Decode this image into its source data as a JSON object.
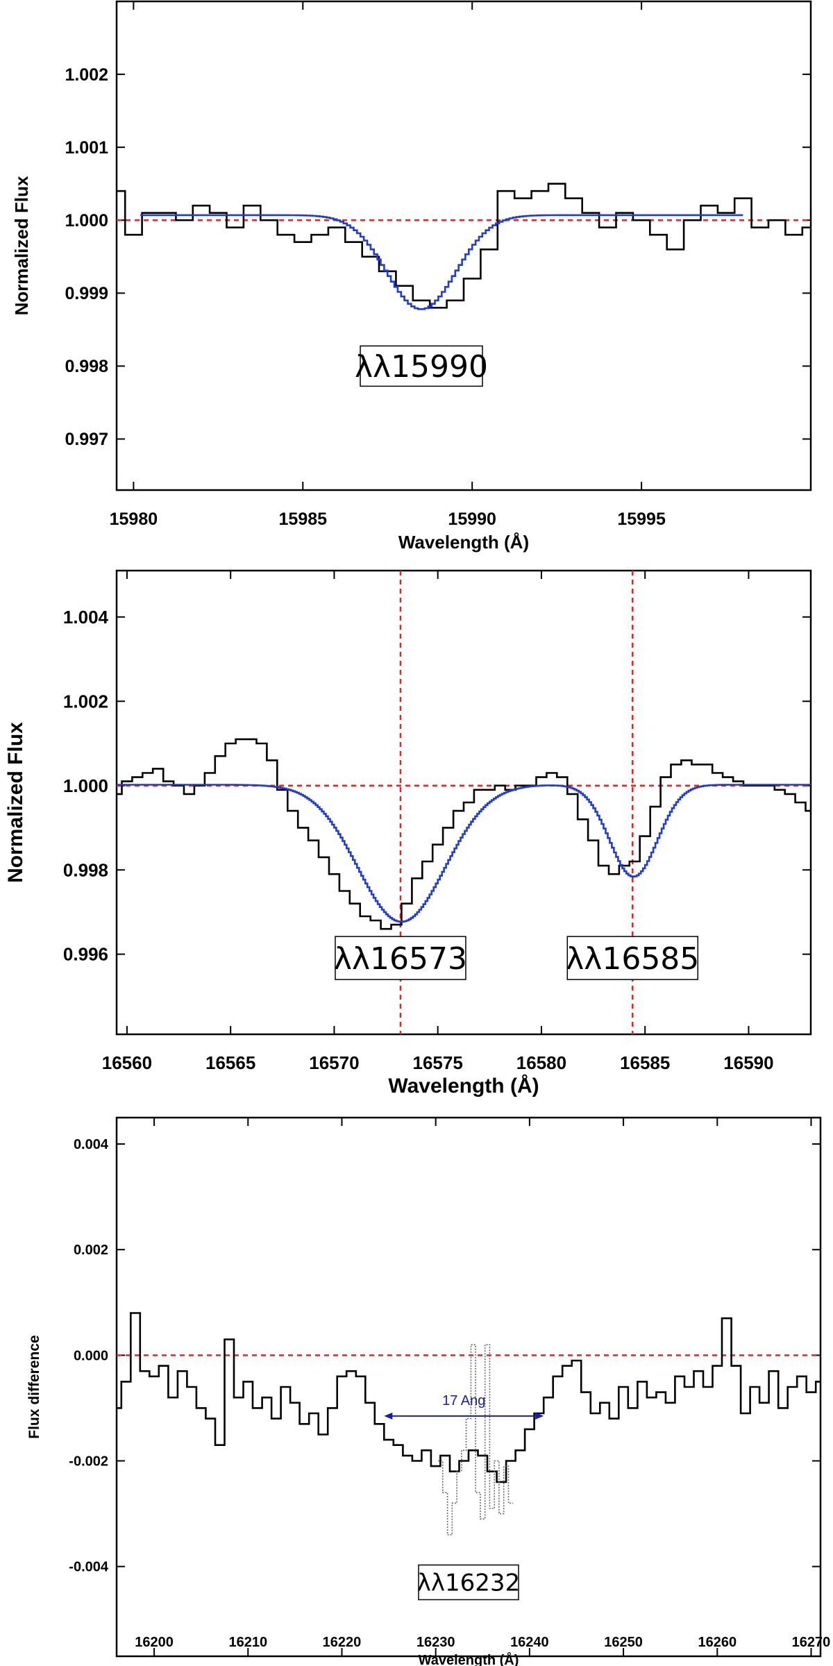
{
  "chart_data": [
    {
      "type": "line",
      "xlabel": "Wavelength (Å)",
      "ylabel": "Normalized Flux",
      "xlim": [
        15979.5,
        16000
      ],
      "ylim": [
        0.9963,
        1.003
      ],
      "xticks": [
        15980,
        15985,
        15990,
        15995
      ],
      "xtick_labels": [
        "15980",
        "15985",
        "15990",
        "15995"
      ],
      "yticks": [
        0.997,
        0.998,
        0.999,
        1.0,
        1.001,
        1.002
      ],
      "ytick_labels": [
        "0.997",
        "0.998",
        "0.999",
        "1.000",
        "1.001",
        "1.002"
      ],
      "hlines": [
        1.0
      ],
      "vlines": [],
      "labels": [
        {
          "text": "λλ15990",
          "x": 15988.5,
          "y": 0.998
        }
      ],
      "series": [
        {
          "style": "observed",
          "color": "#000000",
          "x": [
            15979.5,
            15980.0,
            15980.5,
            15981.0,
            15981.5,
            15982.0,
            15982.5,
            15983.0,
            15983.5,
            15984.0,
            15984.5,
            15985.0,
            15985.5,
            15986.0,
            15986.5,
            15987.0,
            15987.5,
            15988.0,
            15988.5,
            15989.0,
            15989.5,
            15990.0,
            15990.5,
            15991.0,
            15991.5,
            15992.0,
            15992.5,
            15993.0,
            15993.5,
            15994.0,
            15994.5,
            15995.0,
            15995.5,
            15996.0,
            15996.5,
            15997.0,
            15997.5,
            15998.0,
            15998.5,
            15999.0,
            15999.5,
            16000.0
          ],
          "y": [
            1.0004,
            0.9998,
            1.0001,
            1.0001,
            1.0,
            1.0002,
            1.0001,
            0.9999,
            1.0002,
            1.0,
            0.9998,
            0.9997,
            0.9998,
            0.9999,
            0.9997,
            0.9995,
            0.9993,
            0.9991,
            0.9989,
            0.9988,
            0.9989,
            0.9992,
            0.9996,
            1.0004,
            1.0003,
            1.0004,
            1.0005,
            1.0003,
            1.0001,
            0.9999,
            1.0001,
            1.0,
            0.9998,
            0.9996,
            1.0,
            1.0002,
            1.0001,
            1.0003,
            0.9999,
            1.0,
            0.9998,
            0.9999
          ]
        },
        {
          "style": "model",
          "color": "#1f3bd6",
          "line_center": 15988.45,
          "depth": 0.00129,
          "sigma": 1.02,
          "continuum": 1.00007,
          "x_range": [
            15980.2,
            15998.0
          ]
        }
      ]
    },
    {
      "type": "line",
      "xlabel": "Wavelength (Å)",
      "ylabel": "Normalized Flux",
      "xlim": [
        16559.5,
        16593
      ],
      "ylim": [
        0.9941,
        1.0051
      ],
      "xticks": [
        16560,
        16565,
        16570,
        16575,
        16580,
        16585,
        16590
      ],
      "xtick_labels": [
        "16560",
        "16565",
        "16570",
        "16575",
        "16580",
        "16585",
        "16590"
      ],
      "yticks": [
        0.996,
        0.998,
        1.0,
        1.002,
        1.004
      ],
      "ytick_labels": [
        "0.996",
        "0.998",
        "1.000",
        "1.002",
        "1.004"
      ],
      "hlines": [
        1.0
      ],
      "vlines": [
        16573.2,
        16584.4
      ],
      "labels": [
        {
          "text": "λλ16573",
          "x": 16573.2,
          "y": 0.99591
        },
        {
          "text": "λλ16585",
          "x": 16584.4,
          "y": 0.99591
        }
      ],
      "series": [
        {
          "style": "observed",
          "color": "#000000",
          "x": [
            16559.5,
            16560.0,
            16560.5,
            16561.0,
            16561.5,
            16562.0,
            16562.5,
            16563.0,
            16563.5,
            16564.0,
            16564.5,
            16565.0,
            16565.5,
            16566.0,
            16566.5,
            16567.0,
            16567.5,
            16568.0,
            16568.5,
            16569.0,
            16569.5,
            16570.0,
            16570.5,
            16571.0,
            16571.5,
            16572.0,
            16572.5,
            16573.0,
            16573.5,
            16574.0,
            16574.5,
            16575.0,
            16575.5,
            16576.0,
            16576.5,
            16577.0,
            16577.5,
            16578.0,
            16578.5,
            16579.0,
            16579.5,
            16580.0,
            16580.5,
            16581.0,
            16581.5,
            16582.0,
            16582.5,
            16583.0,
            16583.5,
            16584.0,
            16584.5,
            16585.0,
            16585.5,
            16586.0,
            16586.5,
            16587.0,
            16587.5,
            16588.0,
            16588.5,
            16589.0,
            16589.5,
            16590.0,
            16590.5,
            16591.0,
            16591.5,
            16592.0,
            16592.5,
            16593.0
          ],
          "y": [
            0.9998,
            1.0001,
            1.0002,
            1.0003,
            1.0004,
            1.0001,
            1.0,
            0.9998,
            1.0,
            1.0003,
            1.0007,
            1.001,
            1.0011,
            1.0011,
            1.001,
            1.0006,
            0.9999,
            0.9994,
            0.999,
            0.9987,
            0.9983,
            0.9979,
            0.9975,
            0.9972,
            0.9969,
            0.9968,
            0.9966,
            0.9967,
            0.9972,
            0.9978,
            0.9982,
            0.9986,
            0.999,
            0.9994,
            0.9996,
            0.9999,
            0.9999,
            1.0,
            0.9999,
            1.0,
            1.0,
            1.0002,
            1.0003,
            1.0002,
            0.9998,
            0.9992,
            0.9987,
            0.9981,
            0.9979,
            0.9981,
            0.9982,
            0.9988,
            0.9995,
            1.0002,
            1.0005,
            1.0006,
            1.0005,
            1.0005,
            1.0003,
            1.0002,
            1.0001,
            1.0,
            1.0,
            1.0,
            0.9999,
            0.9998,
            0.9996,
            0.9994
          ]
        },
        {
          "style": "model",
          "color": "#1f3bd6",
          "continuum": 1.00002,
          "components": [
            {
              "line_center": 16573.2,
              "depth": 0.00325,
              "sigma": 2.1
            },
            {
              "line_center": 16584.4,
              "depth": 0.00218,
              "sigma": 1.15
            }
          ],
          "x_range": [
            16559.5,
            16593.0
          ]
        }
      ]
    },
    {
      "type": "line",
      "xlabel": "Wavelength (Å)",
      "ylabel": "Flux difference",
      "xlim": [
        16196,
        16271
      ],
      "ylim": [
        -0.0057,
        0.0045
      ],
      "xticks": [
        16200,
        16210,
        16220,
        16230,
        16240,
        16250,
        16260,
        16270
      ],
      "xtick_labels": [
        "16200",
        "16210",
        "16220",
        "16230",
        "16240",
        "16250",
        "16260",
        "16270"
      ],
      "yticks": [
        -0.004,
        -0.002,
        0.0,
        0.002,
        0.004
      ],
      "ytick_labels": [
        "-0.004",
        "-0.002",
        "0.000",
        "0.002",
        "0.004"
      ],
      "hlines": [
        0.0
      ],
      "vlines": [],
      "labels": [
        {
          "text": "λλ16232",
          "x": 16233.5,
          "y": -0.0043
        }
      ],
      "annotations": [
        {
          "text": "17 Ang",
          "x_start": 16224.5,
          "x_end": 16241.5,
          "y": -0.00115
        }
      ],
      "series": [
        {
          "style": "observed",
          "color": "#000000",
          "x": [
            16196,
            16197,
            16198,
            16199,
            16200,
            16201,
            16202,
            16203,
            16204,
            16205,
            16206,
            16207,
            16208,
            16209,
            16210,
            16211,
            16212,
            16213,
            16214,
            16215,
            16216,
            16217,
            16218,
            16219,
            16220,
            16221,
            16222,
            16223,
            16224,
            16225,
            16226,
            16227,
            16228,
            16229,
            16230,
            16231,
            16232,
            16233,
            16234,
            16235,
            16236,
            16237,
            16238,
            16239,
            16240,
            16241,
            16242,
            16243,
            16244,
            16245,
            16246,
            16247,
            16248,
            16249,
            16250,
            16251,
            16252,
            16253,
            16254,
            16255,
            16256,
            16257,
            16258,
            16259,
            16260,
            16261,
            16262,
            16263,
            16264,
            16265,
            16266,
            16267,
            16268,
            16269,
            16270,
            16271
          ],
          "y": [
            -0.001,
            -0.0005,
            0.0008,
            -0.0003,
            -0.0004,
            -0.0002,
            -0.0008,
            -0.0003,
            -0.0006,
            -0.001,
            -0.0012,
            -0.0017,
            0.0003,
            -0.0008,
            -0.0005,
            -0.001,
            -0.0008,
            -0.0012,
            -0.0006,
            -0.0009,
            -0.0013,
            -0.0011,
            -0.0015,
            -0.001,
            -0.0004,
            -0.0003,
            -0.0004,
            -0.0009,
            -0.0013,
            -0.0016,
            -0.0017,
            -0.0019,
            -0.002,
            -0.0018,
            -0.0021,
            -0.0019,
            -0.0022,
            -0.002,
            -0.0018,
            -0.0019,
            -0.0022,
            -0.0024,
            -0.002,
            -0.0018,
            -0.0014,
            -0.0011,
            -0.0008,
            -0.0004,
            -0.0002,
            -0.0001,
            -0.0007,
            -0.0011,
            -0.0009,
            -0.0012,
            -0.0006,
            -0.001,
            -0.0005,
            -0.0008,
            -0.0007,
            -0.0009,
            -0.0004,
            -0.0006,
            -0.0003,
            -0.0006,
            -0.0002,
            0.0007,
            -0.0002,
            -0.0011,
            -0.0006,
            -0.0009,
            -0.0003,
            -0.001,
            -0.0006,
            -0.0004,
            -0.0007,
            -0.0005
          ]
        },
        {
          "style": "dotted",
          "color": "#666666",
          "x": [
            16230.5,
            16231.0,
            16231.5,
            16232.0,
            16232.5,
            16233.0,
            16233.5,
            16234.0,
            16234.5,
            16235.0,
            16235.5,
            16236.0,
            16236.5,
            16237.0,
            16237.5,
            16238.0
          ],
          "y": [
            -0.002,
            -0.0026,
            -0.0034,
            -0.0028,
            -0.0022,
            -0.0018,
            -0.0012,
            0.0002,
            -0.0026,
            -0.0031,
            0.0002,
            -0.0029,
            -0.002,
            -0.003,
            -0.0021,
            -0.0028
          ]
        }
      ]
    }
  ]
}
